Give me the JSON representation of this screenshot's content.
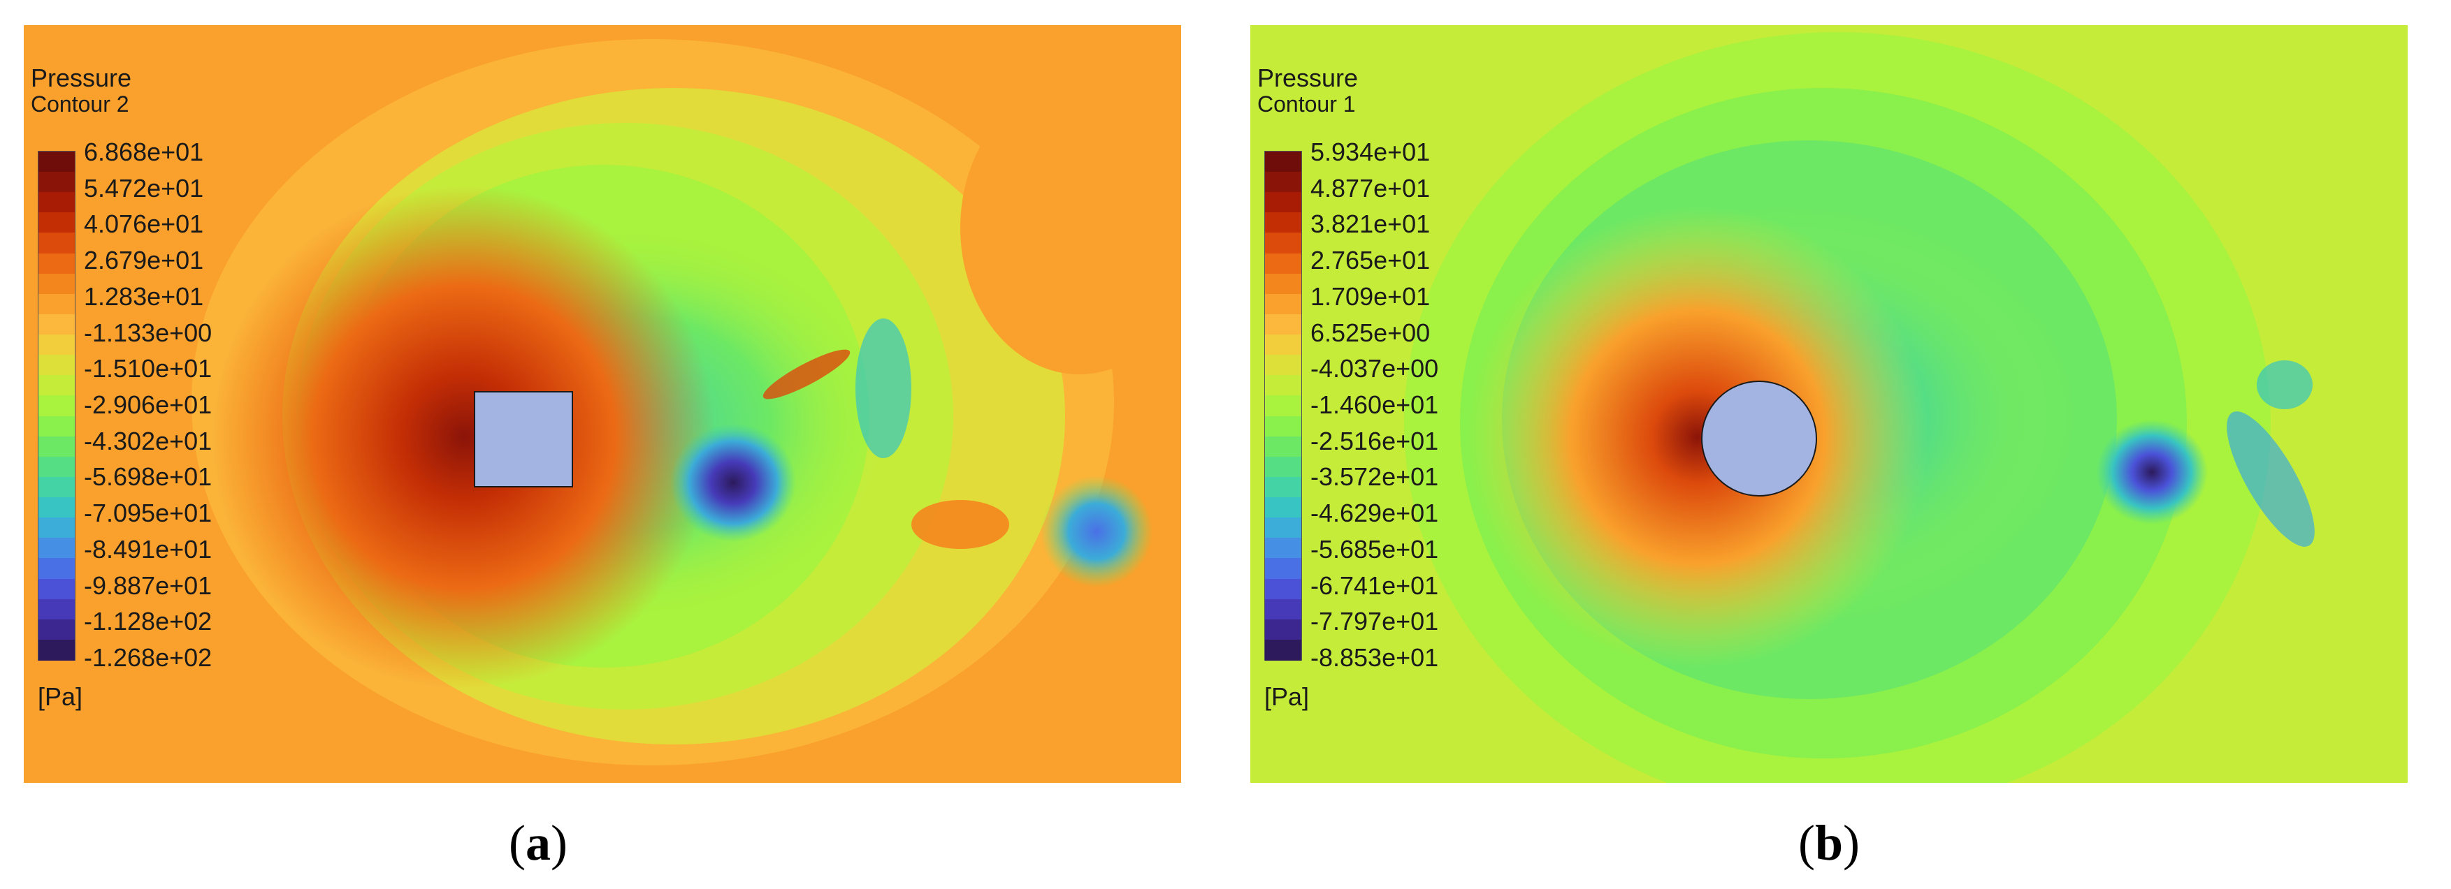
{
  "chart_data": [
    {
      "type": "heatmap",
      "panel_label": "a",
      "legend": {
        "title": "Pressure",
        "subtitle": "Contour 2",
        "unit": "[Pa]",
        "ticks": [
          "6.868e+01",
          "5.472e+01",
          "4.076e+01",
          "2.679e+01",
          "1.283e+01",
          "-1.133e+00",
          "-1.510e+01",
          "-2.906e+01",
          "-4.302e+01",
          "-5.698e+01",
          "-7.095e+01",
          "-8.491e+01",
          "-9.887e+01",
          "-1.128e+02",
          "-1.268e+02"
        ],
        "range": [
          -126.8,
          68.68
        ]
      },
      "obstacle": "square",
      "colors": {
        "obstacle": "#a3b4e3",
        "background": "#f8b23a"
      }
    },
    {
      "type": "heatmap",
      "panel_label": "b",
      "legend": {
        "title": "Pressure",
        "subtitle": "Contour 1",
        "unit": "[Pa]",
        "ticks": [
          "5.934e+01",
          "4.877e+01",
          "3.821e+01",
          "2.765e+01",
          "1.709e+01",
          "6.525e+00",
          "-4.037e+00",
          "-1.460e+01",
          "-2.516e+01",
          "-3.572e+01",
          "-4.629e+01",
          "-5.685e+01",
          "-6.741e+01",
          "-7.797e+01",
          "-8.853e+01"
        ],
        "range": [
          -88.53,
          59.34
        ]
      },
      "obstacle": "circle",
      "colors": {
        "obstacle": "#a3b4e3",
        "background": "#c8ea3a"
      }
    }
  ],
  "colormap": [
    "#6e0d0a",
    "#8b1408",
    "#a81c05",
    "#c42e05",
    "#dc4a0c",
    "#ec6a14",
    "#f4861e",
    "#f9a12c",
    "#fbb83c",
    "#f2cd3c",
    "#dee03a",
    "#c6ec3a",
    "#a9f23e",
    "#8af04c",
    "#6de864",
    "#56de84",
    "#43d3a4",
    "#38c4c2",
    "#3cacd8",
    "#4590e4",
    "#4a70e6",
    "#4b52d8",
    "#463ab8",
    "#3c2790",
    "#2c1a5c"
  ],
  "captions": {
    "a_open": "(",
    "a_letter": "a",
    "a_close": ")",
    "b_open": "(",
    "b_letter": "b",
    "b_close": ")"
  }
}
